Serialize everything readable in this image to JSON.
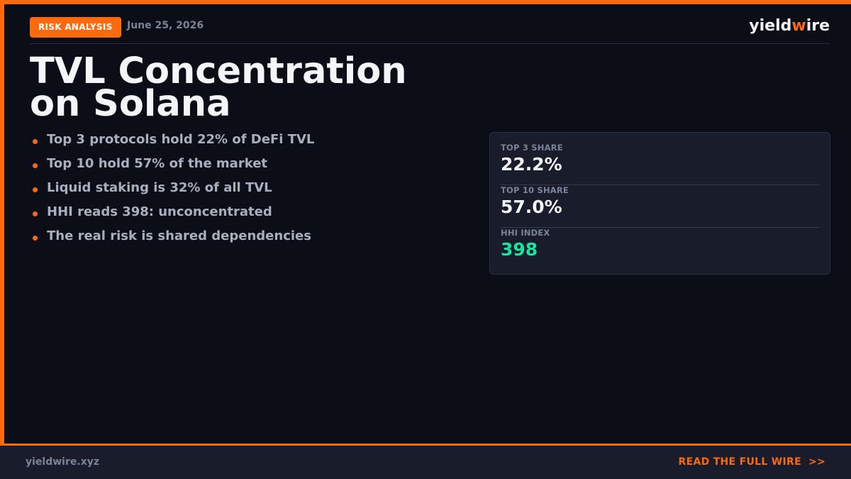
{
  "header": {
    "badge": "RISK ANALYSIS",
    "date": "June 25, 2026",
    "brand": {
      "prefix": "yield",
      "accent": "w",
      "suffix": "ire"
    }
  },
  "title": {
    "line1": "TVL Concentration",
    "line2": "on Solana"
  },
  "bullets": [
    "Top 3 protocols hold 22% of DeFi TVL",
    "Top 10 hold 57% of the market",
    "Liquid staking is 32% of all TVL",
    "HHI reads 398: unconcentrated",
    "The real risk is shared dependencies"
  ],
  "stats": [
    {
      "label": "TOP 3 SHARE",
      "value": "22.2%"
    },
    {
      "label": "TOP 10 SHARE",
      "value": "57.0%"
    },
    {
      "label": "HHI INDEX",
      "value": "398"
    }
  ],
  "footer": {
    "url": "yieldwire.xyz",
    "cta": "READ THE FULL WIRE",
    "cta_icon": ">>"
  },
  "colors": {
    "accent": "#ff6a0d",
    "background": "#0c0e17",
    "panel": "#181c2b",
    "highlight": "#19e3a0"
  }
}
